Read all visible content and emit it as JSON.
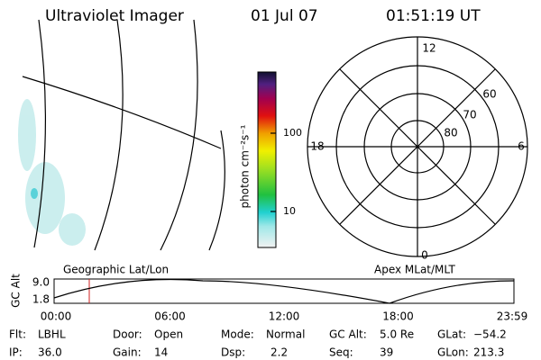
{
  "header": {
    "title": "Ultraviolet Imager",
    "date": "01 Jul 07",
    "time": "01:51:19 UT"
  },
  "colorbar": {
    "label": "photon cm⁻²s⁻¹",
    "ticks": [
      "100",
      "10"
    ]
  },
  "polar": {
    "mlt_labels": [
      "12",
      "18",
      "6",
      "0"
    ],
    "lat_labels": [
      "60",
      "70",
      "80"
    ]
  },
  "timeline": {
    "y_label": "GC Alt",
    "y_ticks": [
      "9.0",
      "1.8"
    ],
    "left_title": "Geographic Lat/Lon",
    "right_title": "Apex MLat/MLT",
    "x_ticks": [
      "00:00",
      "06:00",
      "12:00",
      "18:00",
      "23:59"
    ]
  },
  "status": [
    [
      [
        "Flt:",
        "LBHL"
      ],
      [
        "Door:",
        "Open"
      ],
      [
        "Mode:",
        "Normal"
      ],
      [
        "GC Alt:",
        "5.0 Re"
      ],
      [
        "GLat:",
        "−54.2"
      ]
    ],
    [
      [
        "IP:",
        "36.0"
      ],
      [
        "Gain:",
        "14"
      ],
      [
        "Dsp:",
        "2.2"
      ],
      [
        "Seq:",
        "39"
      ],
      [
        "GLon:",
        "213.3"
      ]
    ]
  ]
}
